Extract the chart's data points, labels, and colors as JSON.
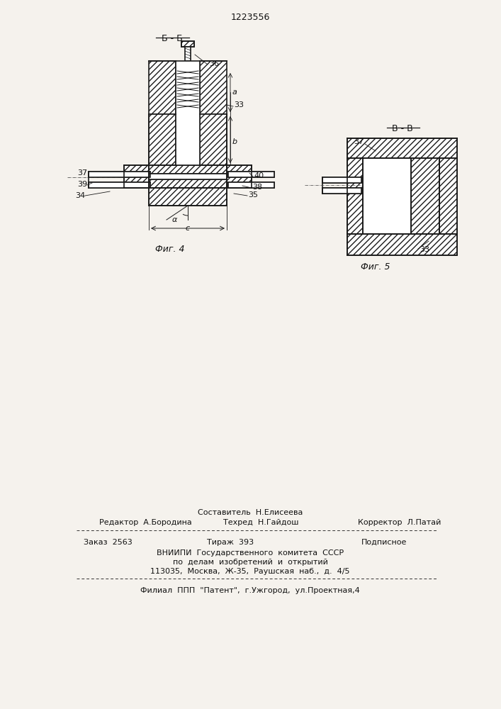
{
  "patent_number": "1223556",
  "bg_color": "#f5f2ed",
  "line_color": "#1a1a1a",
  "fig4_label": "Фиг. 4",
  "fig5_label": "Фиг. 5",
  "section_bb": "Б - Б",
  "section_vv": "В - В",
  "footer": {
    "line1_center": "Составитель  Н.Елисеева",
    "line1_left": "Редактор  А.Бородина",
    "line1_center2": "Техред  Н.Гайдош",
    "line1_right": "Корректор  Л.Патай",
    "line2_left": "Заказ  2563",
    "line2_center": "Тираж  393",
    "line2_right": "Подписное",
    "line3": "ВНИИПИ  Государственного  комитета  СССР",
    "line4": "по  делам  изобретений  и  открытий",
    "line5": "113035,  Москва,  Ж-35,  Раушская  наб.,  д.  4/5",
    "line6": "Филиал  ППП  \"Патент\",  г.Ужгород,  ул.Проектная,4"
  }
}
